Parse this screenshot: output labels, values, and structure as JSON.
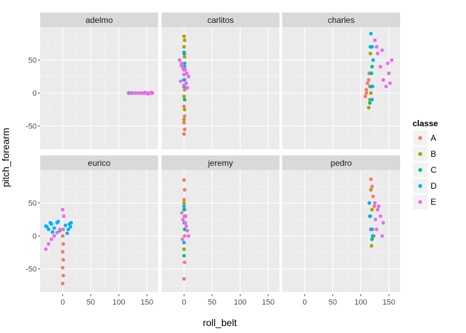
{
  "chart_data": {
    "type": "scatter",
    "title": "",
    "xlabel": "roll_belt",
    "ylabel": "pitch_forearm",
    "xlim": [
      -40,
      170
    ],
    "ylim": [
      -85,
      100
    ],
    "x_ticks": [
      0,
      50,
      100,
      150
    ],
    "y_ticks": [
      -50,
      0,
      50
    ],
    "grid": true,
    "legend": {
      "title": "classe",
      "placement": "right",
      "entries": [
        {
          "name": "A",
          "color": "#F8766D"
        },
        {
          "name": "B",
          "color": "#A3A500"
        },
        {
          "name": "C",
          "color": "#00BF7D"
        },
        {
          "name": "D",
          "color": "#00B0F6"
        },
        {
          "name": "E",
          "color": "#E76BF3"
        }
      ]
    },
    "facets": [
      {
        "name": "adelmo",
        "series": [
          {
            "name": "A",
            "x": [
              118,
              130,
              140,
              150,
              158
            ],
            "y": [
              0,
              0,
              0,
              0,
              0
            ]
          },
          {
            "name": "C",
            "x": [
              118,
              122
            ],
            "y": [
              0,
              0
            ]
          },
          {
            "name": "E",
            "x": [
              120,
              125,
              130,
              135,
              140,
              145,
              150,
              155,
              160,
              158,
              152,
              146
            ],
            "y": [
              0,
              0,
              0,
              0,
              0,
              0,
              0,
              0,
              0,
              1,
              -1,
              1
            ]
          }
        ]
      },
      {
        "name": "carlitos",
        "series": [
          {
            "name": "A",
            "x": [
              0,
              1,
              0,
              1,
              0,
              1,
              0,
              1
            ],
            "y": [
              -62,
              -55,
              -45,
              -35,
              -20,
              5,
              35,
              60
            ]
          },
          {
            "name": "B",
            "x": [
              0,
              1,
              0,
              1,
              0,
              1,
              0,
              1,
              0
            ],
            "y": [
              86,
              80,
              70,
              55,
              40,
              20,
              -5,
              -25,
              -40
            ]
          },
          {
            "name": "C",
            "x": [
              0,
              1,
              0,
              1
            ],
            "y": [
              60,
              45,
              10,
              -10
            ]
          },
          {
            "name": "D",
            "x": [
              0,
              1,
              0
            ],
            "y": [
              62,
              40,
              20
            ]
          },
          {
            "name": "E",
            "x": [
              -8,
              -5,
              -2,
              2,
              5,
              8,
              -6,
              0,
              6,
              -4,
              4,
              0
            ],
            "y": [
              50,
              42,
              38,
              35,
              30,
              25,
              18,
              12,
              8,
              45,
              15,
              28
            ]
          }
        ]
      },
      {
        "name": "charles",
        "series": [
          {
            "name": "A",
            "x": [
              108,
              110,
              112,
              114,
              116,
              110
            ],
            "y": [
              -5,
              5,
              15,
              20,
              10,
              0
            ]
          },
          {
            "name": "B",
            "x": [
              114,
              116,
              118,
              115,
              117
            ],
            "y": [
              -22,
              -10,
              0,
              30,
              60
            ]
          },
          {
            "name": "C",
            "x": [
              116,
              118,
              120,
              117
            ],
            "y": [
              -15,
              10,
              40,
              70
            ]
          },
          {
            "name": "D",
            "x": [
              118,
              120,
              122,
              119,
              121,
              120
            ],
            "y": [
              90,
              70,
              50,
              30,
              10,
              -10
            ]
          },
          {
            "name": "E",
            "x": [
              125,
              130,
              135,
              140,
              145,
              150,
              155,
              128,
              138,
              148,
              152
            ],
            "y": [
              80,
              60,
              40,
              20,
              10,
              30,
              50,
              70,
              65,
              45,
              15
            ]
          }
        ]
      },
      {
        "name": "eurico",
        "series": [
          {
            "name": "A",
            "x": [
              0,
              1,
              0,
              1,
              0,
              1,
              0,
              1
            ],
            "y": [
              -72,
              -60,
              -48,
              -36,
              -24,
              -12,
              0,
              10
            ]
          },
          {
            "name": "D",
            "x": [
              -30,
              -25,
              -20,
              -15,
              -10,
              -5,
              5,
              10,
              15,
              -28,
              -18,
              -8,
              8,
              14,
              -22,
              12
            ],
            "y": [
              15,
              10,
              18,
              12,
              20,
              8,
              16,
              10,
              20,
              14,
              6,
              22,
              4,
              14,
              20,
              18
            ]
          },
          {
            "name": "E",
            "x": [
              -30,
              -25,
              -20,
              -15,
              -10,
              -5,
              0,
              2
            ],
            "y": [
              -20,
              -12,
              -5,
              0,
              5,
              10,
              40,
              30
            ]
          }
        ]
      },
      {
        "name": "jeremy",
        "series": [
          {
            "name": "A",
            "x": [
              0,
              1,
              0,
              1,
              0,
              1,
              0,
              1,
              0
            ],
            "y": [
              85,
              70,
              55,
              40,
              20,
              0,
              -20,
              -40,
              -65
            ]
          },
          {
            "name": "B",
            "x": [
              0,
              1,
              0
            ],
            "y": [
              50,
              30,
              -20
            ]
          },
          {
            "name": "C",
            "x": [
              0,
              1,
              0
            ],
            "y": [
              40,
              10,
              -30
            ]
          },
          {
            "name": "D",
            "x": [
              0,
              1,
              0
            ],
            "y": [
              45,
              20,
              -10
            ]
          },
          {
            "name": "E",
            "x": [
              -4,
              -2,
              2,
              4,
              6,
              8,
              -3,
              3
            ],
            "y": [
              35,
              25,
              20,
              15,
              8,
              0,
              -5,
              30
            ]
          }
        ]
      },
      {
        "name": "pedro",
        "series": [
          {
            "name": "A",
            "x": [
              118,
              120,
              122,
              124,
              121,
              123
            ],
            "y": [
              86,
              75,
              60,
              45,
              10,
              0
            ]
          },
          {
            "name": "B",
            "x": [
              118,
              120,
              122,
              119
            ],
            "y": [
              70,
              40,
              0,
              -15
            ]
          },
          {
            "name": "C",
            "x": [
              116,
              118,
              120
            ],
            "y": [
              30,
              10,
              -5
            ]
          },
          {
            "name": "D",
            "x": [
              115,
              117,
              119,
              121
            ],
            "y": [
              50,
              30,
              10,
              0
            ]
          },
          {
            "name": "E",
            "x": [
              125,
              130,
              135,
              140,
              128,
              138,
              132,
              126
            ],
            "y": [
              50,
              40,
              30,
              20,
              10,
              0,
              45,
              25
            ]
          }
        ]
      }
    ]
  }
}
